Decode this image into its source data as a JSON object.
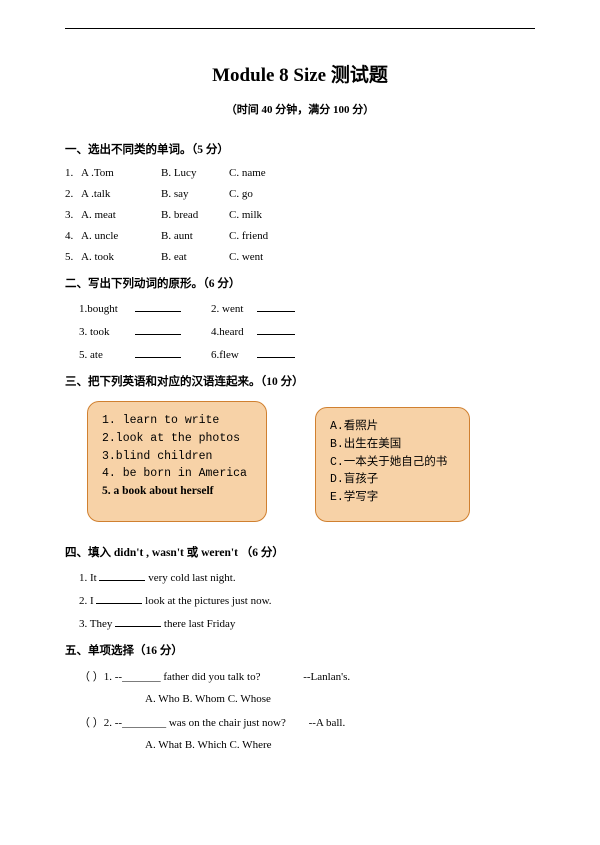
{
  "title": "Module 8 Size 测试题",
  "subtitle": "（时间 40 分钟，满分 100 分）",
  "s1": {
    "head": "一、选出不同类的单词。（5 分）",
    "rows": [
      {
        "n": "1.",
        "a": "A .Tom",
        "b": "B. Lucy",
        "c": "C. name"
      },
      {
        "n": "2.",
        "a": "A .talk",
        "b": "B. say",
        "c": "C. go"
      },
      {
        "n": "3.",
        "a": "A. meat",
        "b": "B. bread",
        "c": "C. milk"
      },
      {
        "n": "4.",
        "a": "A. uncle",
        "b": "B. aunt",
        "c": "C. friend"
      },
      {
        "n": "5.",
        "a": "A. took",
        "b": "B. eat",
        "c": "C. went"
      }
    ]
  },
  "s2": {
    "head": "二、写出下列动词的原形。（6 分）",
    "pairs": [
      {
        "l": "1.bought",
        "r": "2. went"
      },
      {
        "l": "3. took",
        "r": "4.heard"
      },
      {
        "l": "5. ate",
        "r": "6.flew"
      }
    ]
  },
  "s3": {
    "head": "三、把下列英语和对应的汉语连起来。（10 分）",
    "left": [
      "1. learn to write",
      "2.look at the photos",
      "3.blind children",
      "4. be born in America"
    ],
    "left_last": "5. a book about herself",
    "right": [
      "A.看照片",
      "B.出生在美国",
      "C.一本关于她自己的书",
      "D.盲孩子",
      "E.学写字"
    ]
  },
  "s4": {
    "head": "四、填入   didn't   , wasn't     或  weren't  （6 分）",
    "rows": [
      {
        "pre": "1. It ",
        "post": " very cold last night."
      },
      {
        "pre": "2. I ",
        "post": "  look at the pictures just now."
      },
      {
        "pre": "3. They ",
        "post": " there last Friday"
      }
    ]
  },
  "s5": {
    "head": "五、单项选择（16 分）",
    "q1": {
      "q": "（     ）1. --_______  father did you talk to?",
      "ans": "--Lanlan's.",
      "a": "A. Who",
      "b": "B. Whom",
      "c": "C. Whose"
    },
    "q2": {
      "q": "（     ）2. --________ was on the chair just now?",
      "ans": "--A ball.",
      "a": "A. What",
      "b": "B. Which",
      "c": "C. Where"
    }
  }
}
